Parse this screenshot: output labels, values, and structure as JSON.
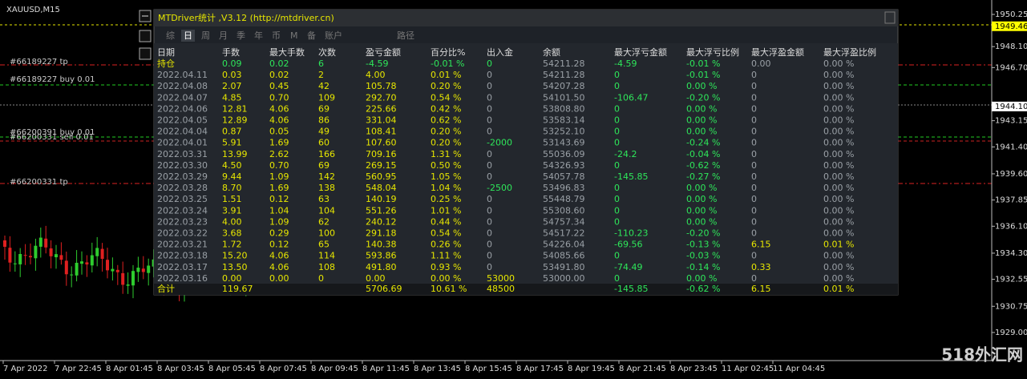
{
  "chart_label": "XAUUSD,M15",
  "price_axis": [
    "1950.25",
    "1948.10",
    "1946.70",
    "1943.15",
    "1941.40",
    "1939.60",
    "1937.85",
    "1936.10",
    "1934.30",
    "1932.55",
    "1930.75",
    "1929.00"
  ],
  "price_highlights": [
    {
      "label": "1949.46",
      "color": "#ffff00"
    },
    {
      "label": "1944.10",
      "color": "#ffffff"
    }
  ],
  "time_axis": [
    "7 Apr 2022",
    "7 Apr 22:45",
    "8 Apr 01:45",
    "8 Apr 03:45",
    "8 Apr 05:45",
    "8 Apr 07:45",
    "8 Apr 09:45",
    "8 Apr 11:45",
    "8 Apr 13:45",
    "8 Apr 15:45",
    "8 Apr 17:45",
    "8 Apr 19:45",
    "8 Apr 21:45",
    "8 Apr 23:45",
    "11 Apr 02:45",
    "11 Apr 04:45"
  ],
  "order_labels": [
    "#66189227 tp",
    "#66189227 buy 0.01",
    "#66200391 buy 0.01",
    "#66200331 sell 0.01",
    "#66200331 tp"
  ],
  "panel": {
    "title": "MTDriver统计 ,V3.12 (http://mtdriver.cn)",
    "tabs": [
      "综",
      "日",
      "周",
      "月",
      "季",
      "年",
      "币",
      "M",
      "备",
      "账户",
      "路径"
    ],
    "columns": [
      "日期",
      "手数",
      "最大手数",
      "次数",
      "盈亏金额",
      "百分比%",
      "出入金",
      "余额",
      "最大浮亏金额",
      "最大浮亏比例",
      "最大浮盈金额",
      "最大浮盈比例"
    ],
    "rows": [
      [
        "持仓",
        "0.09",
        "0.02",
        "6",
        "-4.59",
        "-0.01 %",
        "0",
        "54211.28",
        "-4.59",
        "-0.01 %",
        "0.00",
        "0.00 %"
      ],
      [
        "2022.04.11",
        "0.03",
        "0.02",
        "2",
        "4.00",
        "0.01 %",
        "0",
        "54211.28",
        "0",
        "-0.01 %",
        "0",
        "0.00 %"
      ],
      [
        "2022.04.08",
        "2.07",
        "0.45",
        "42",
        "105.78",
        "0.20 %",
        "0",
        "54207.28",
        "0",
        "0.00 %",
        "0",
        "0.00 %"
      ],
      [
        "2022.04.07",
        "4.85",
        "0.70",
        "109",
        "292.70",
        "0.54 %",
        "0",
        "54101.50",
        "-106.47",
        "-0.20 %",
        "0",
        "0.00 %"
      ],
      [
        "2022.04.06",
        "12.81",
        "4.06",
        "69",
        "225.66",
        "0.42 %",
        "0",
        "53808.80",
        "0",
        "0.00 %",
        "0",
        "0.00 %"
      ],
      [
        "2022.04.05",
        "12.89",
        "4.06",
        "86",
        "331.04",
        "0.62 %",
        "0",
        "53583.14",
        "0",
        "0.00 %",
        "0",
        "0.00 %"
      ],
      [
        "2022.04.04",
        "0.87",
        "0.05",
        "49",
        "108.41",
        "0.20 %",
        "0",
        "53252.10",
        "0",
        "0.00 %",
        "0",
        "0.00 %"
      ],
      [
        "2022.04.01",
        "5.91",
        "1.69",
        "60",
        "107.60",
        "0.20 %",
        "-2000",
        "53143.69",
        "0",
        "-0.24 %",
        "0",
        "0.00 %"
      ],
      [
        "2022.03.31",
        "13.99",
        "2.62",
        "166",
        "709.16",
        "1.31 %",
        "0",
        "55036.09",
        "-24.2",
        "-0.04 %",
        "0",
        "0.00 %"
      ],
      [
        "2022.03.30",
        "4.50",
        "0.70",
        "69",
        "269.15",
        "0.50 %",
        "0",
        "54326.93",
        "0",
        "-0.62 %",
        "0",
        "0.00 %"
      ],
      [
        "2022.03.29",
        "9.44",
        "1.09",
        "142",
        "560.95",
        "1.05 %",
        "0",
        "54057.78",
        "-145.85",
        "-0.27 %",
        "0",
        "0.00 %"
      ],
      [
        "2022.03.28",
        "8.70",
        "1.69",
        "138",
        "548.04",
        "1.04 %",
        "-2500",
        "53496.83",
        "0",
        "0.00 %",
        "0",
        "0.00 %"
      ],
      [
        "2022.03.25",
        "1.51",
        "0.12",
        "63",
        "140.19",
        "0.25 %",
        "0",
        "55448.79",
        "0",
        "0.00 %",
        "0",
        "0.00 %"
      ],
      [
        "2022.03.24",
        "3.91",
        "1.04",
        "104",
        "551.26",
        "1.01 %",
        "0",
        "55308.60",
        "0",
        "0.00 %",
        "0",
        "0.00 %"
      ],
      [
        "2022.03.23",
        "4.00",
        "1.09",
        "62",
        "240.12",
        "0.44 %",
        "0",
        "54757.34",
        "0",
        "0.00 %",
        "0",
        "0.00 %"
      ],
      [
        "2022.03.22",
        "3.68",
        "0.29",
        "100",
        "291.18",
        "0.54 %",
        "0",
        "54517.22",
        "-110.23",
        "-0.20 %",
        "0",
        "0.00 %"
      ],
      [
        "2022.03.21",
        "1.72",
        "0.12",
        "65",
        "140.38",
        "0.26 %",
        "0",
        "54226.04",
        "-69.56",
        "-0.13 %",
        "6.15",
        "0.01 %"
      ],
      [
        "2022.03.18",
        "15.20",
        "4.06",
        "114",
        "593.86",
        "1.11 %",
        "0",
        "54085.66",
        "0",
        "-0.03 %",
        "0",
        "0.00 %"
      ],
      [
        "2022.03.17",
        "13.50",
        "4.06",
        "108",
        "491.80",
        "0.93 %",
        "0",
        "53491.80",
        "-74.49",
        "-0.14 %",
        "0.33",
        "0.00 %"
      ],
      [
        "2022.03.16",
        "0.00",
        "0.00",
        "0",
        "0.00",
        "0.00 %",
        "53000",
        "53000.00",
        "0",
        "0.00 %",
        "0",
        "0.00 %"
      ]
    ],
    "total": [
      "合计",
      "119.67",
      "5706.69",
      "10.61 %",
      "48500",
      "-145.85",
      "-0.62 %",
      "6.15",
      "0.01 %"
    ]
  },
  "watermark": "518外汇网"
}
